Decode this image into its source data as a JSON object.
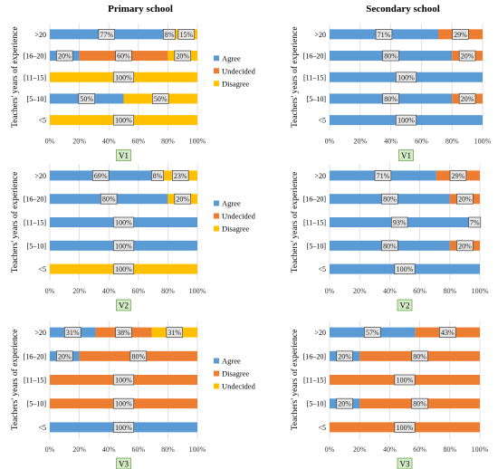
{
  "headers": {
    "primary": "Primary school",
    "secondary": "Secondary school"
  },
  "ylabel": "Teachers' years of experience",
  "colors": {
    "agree": "#5b9bd5",
    "orange": "#ed7d31",
    "yellow": "#ffc000",
    "vbox_fill": "#d6ecc8",
    "vbox_stroke": "#6aa84f"
  },
  "chart_data": [
    {
      "type": "bar",
      "stacked": true,
      "orientation": "horizontal",
      "panel": "V1",
      "school": "Primary school",
      "ylabel": "Teachers' years of experience",
      "categories": [
        ">20",
        "[16–20]",
        "[11–15]",
        "[5–10]",
        "<5"
      ],
      "xticks": [
        "0%",
        "20%",
        "40%",
        "60%",
        "80%",
        "100%"
      ],
      "xlim": [
        0,
        100
      ],
      "legend_position": "right",
      "series": [
        {
          "name": "Agree",
          "color": "#5b9bd5",
          "values": [
            77,
            20,
            0,
            50,
            0
          ],
          "labels": [
            "77%",
            "20%",
            "",
            "50%",
            ""
          ]
        },
        {
          "name": "Undecided",
          "color": "#ed7d31",
          "values": [
            8,
            60,
            0,
            0,
            0
          ],
          "labels": [
            "8%",
            "60%",
            "",
            "",
            ""
          ]
        },
        {
          "name": "Disagree",
          "color": "#ffc000",
          "values": [
            15,
            20,
            100,
            50,
            100
          ],
          "labels": [
            "15%",
            "20%",
            "100%",
            "50%",
            "100%"
          ]
        }
      ]
    },
    {
      "type": "bar",
      "stacked": true,
      "orientation": "horizontal",
      "panel": "V1",
      "school": "Secondary school",
      "ylabel": "Teachers' years of experience",
      "categories": [
        ">20",
        "[16–20]",
        "[11–15]",
        "[5–10]",
        "<5"
      ],
      "xticks": [
        "0%",
        "20%",
        "40%",
        "60%",
        "80%",
        "100%"
      ],
      "xlim": [
        0,
        100
      ],
      "series": [
        {
          "name": "Agree",
          "color": "#5b9bd5",
          "values": [
            71,
            80,
            100,
            80,
            100
          ],
          "labels": [
            "71%",
            "80%",
            "100%",
            "80%",
            "100%"
          ]
        },
        {
          "name": "Undecided",
          "color": "#ed7d31",
          "values": [
            29,
            20,
            0,
            20,
            0
          ],
          "labels": [
            "29%",
            "20%",
            "",
            "20%",
            ""
          ]
        }
      ]
    },
    {
      "type": "bar",
      "stacked": true,
      "orientation": "horizontal",
      "panel": "V2",
      "school": "Primary school",
      "ylabel": "Teachers' years of experience",
      "categories": [
        ">20",
        "[16–20]",
        "[11–15]",
        "[5–10]",
        "<5"
      ],
      "xticks": [
        "0%",
        "20%",
        "40%",
        "60%",
        "80%",
        "100%"
      ],
      "xlim": [
        0,
        100
      ],
      "legend_position": "right",
      "series": [
        {
          "name": "Agree",
          "color": "#5b9bd5",
          "values": [
            69,
            80,
            100,
            100,
            0
          ],
          "labels": [
            "69%",
            "80%",
            "100%",
            "100%",
            ""
          ]
        },
        {
          "name": "Undecided",
          "color": "#ed7d31",
          "values": [
            8,
            0,
            0,
            0,
            0
          ],
          "labels": [
            "8%",
            "",
            "",
            "",
            ""
          ]
        },
        {
          "name": "Disagree",
          "color": "#ffc000",
          "values": [
            23,
            20,
            0,
            0,
            100
          ],
          "labels": [
            "23%",
            "20%",
            "",
            "",
            "100%"
          ]
        }
      ]
    },
    {
      "type": "bar",
      "stacked": true,
      "orientation": "horizontal",
      "panel": "V2",
      "school": "Secondary school",
      "ylabel": "Teachers' years of experience",
      "categories": [
        ">20",
        "[16–20]",
        "[11–15]",
        "[5–10]",
        "<5"
      ],
      "xticks": [
        "0%",
        "20%",
        "40%",
        "60%",
        "80%",
        "100%"
      ],
      "xlim": [
        0,
        100
      ],
      "series": [
        {
          "name": "Agree",
          "color": "#5b9bd5",
          "values": [
            71,
            80,
            93,
            80,
            100
          ],
          "labels": [
            "71%",
            "80%",
            "93%",
            "80%",
            "100%"
          ]
        },
        {
          "name": "Undecided",
          "color": "#ed7d31",
          "values": [
            29,
            20,
            7,
            20,
            0
          ],
          "labels": [
            "29%",
            "20%",
            "7%",
            "20%",
            ""
          ]
        }
      ]
    },
    {
      "type": "bar",
      "stacked": true,
      "orientation": "horizontal",
      "panel": "V3",
      "school": "Primary school",
      "ylabel": "Teachers' years of experience",
      "categories": [
        ">20",
        "[16–20]",
        "[11–15]",
        "[5–10]",
        "<5"
      ],
      "xticks": [
        "0%",
        "20%",
        "40%",
        "60%",
        "80%",
        "100%"
      ],
      "xlim": [
        0,
        100
      ],
      "legend_position": "right",
      "series": [
        {
          "name": "Agree",
          "color": "#5b9bd5",
          "values": [
            31,
            20,
            0,
            0,
            100
          ],
          "labels": [
            "31%",
            "20%",
            "",
            "",
            "100%"
          ]
        },
        {
          "name": "Disagree",
          "color": "#ed7d31",
          "values": [
            38,
            80,
            100,
            100,
            0
          ],
          "labels": [
            "38%",
            "80%",
            "100%",
            "100%",
            ""
          ]
        },
        {
          "name": "Undecided",
          "color": "#ffc000",
          "values": [
            31,
            0,
            0,
            0,
            0
          ],
          "labels": [
            "31%",
            "",
            "",
            "",
            ""
          ]
        }
      ]
    },
    {
      "type": "bar",
      "stacked": true,
      "orientation": "horizontal",
      "panel": "V3",
      "school": "Secondary school",
      "ylabel": "Teachers' years of experience",
      "categories": [
        ">20",
        "[16–20]",
        "[11–15]",
        "[5–10]",
        "<5"
      ],
      "xticks": [
        "0%",
        "20%",
        "40%",
        "60%",
        "80%",
        "100%"
      ],
      "xlim": [
        0,
        100
      ],
      "series": [
        {
          "name": "Agree",
          "color": "#5b9bd5",
          "values": [
            57,
            20,
            0,
            20,
            0
          ],
          "labels": [
            "57%",
            "20%",
            "",
            "20%",
            ""
          ]
        },
        {
          "name": "Disagree",
          "color": "#ed7d31",
          "values": [
            43,
            80,
            100,
            80,
            100
          ],
          "labels": [
            "43%",
            "80%",
            "100%",
            "80%",
            "100%"
          ]
        }
      ]
    }
  ]
}
